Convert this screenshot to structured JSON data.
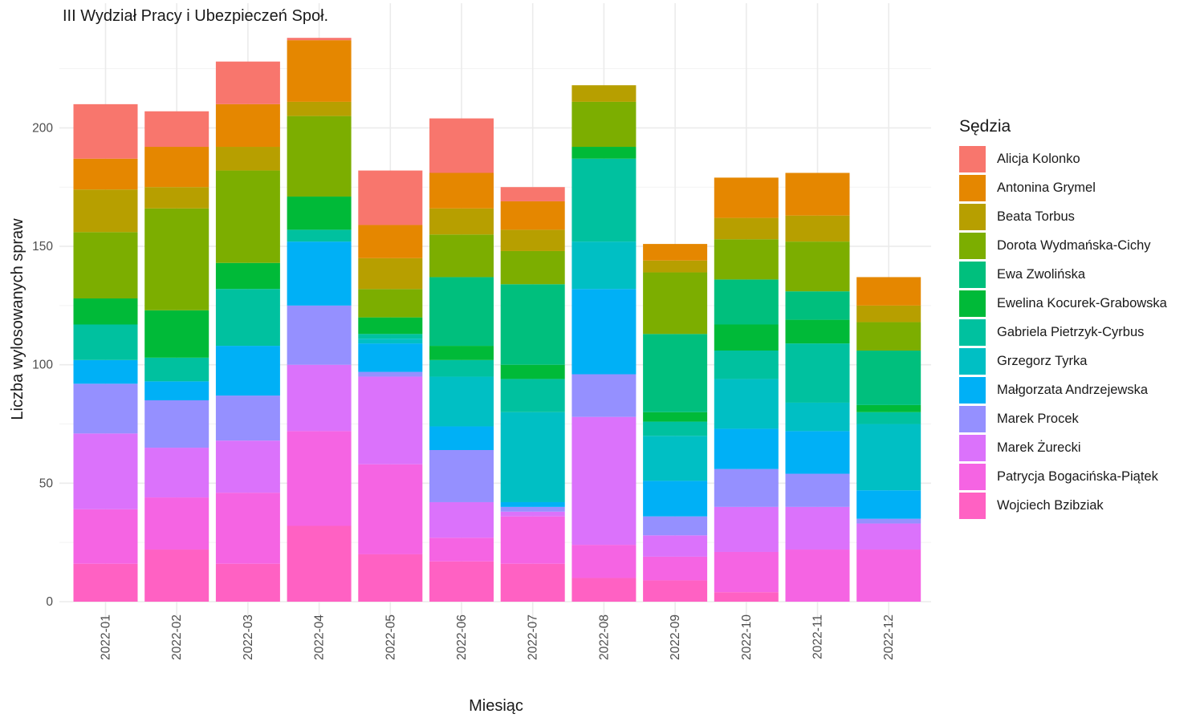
{
  "chart_data": {
    "type": "bar",
    "stacked": true,
    "title": "III Wydział Pracy i Ubezpieczeń Społ.",
    "xlabel": "Miesiąc",
    "ylabel": "Liczba wylosowanych spraw",
    "ylim": [
      0,
      240
    ],
    "yticks": [
      0,
      50,
      100,
      150,
      200
    ],
    "grid": true,
    "legend_title": "Sędzia",
    "legend_position": "right",
    "categories": [
      "2022-01",
      "2022-02",
      "2022-03",
      "2022-04",
      "2022-05",
      "2022-06",
      "2022-07",
      "2022-08",
      "2022-09",
      "2022-10",
      "2022-11",
      "2022-12"
    ],
    "series": [
      {
        "name": "Wojciech Bzibziak",
        "color": "#FF61C3",
        "values": [
          16,
          22,
          16,
          32,
          20,
          17,
          16,
          10,
          9,
          4,
          0,
          0
        ]
      },
      {
        "name": "Patrycja Bogacińska-Piątek",
        "color": "#F564E3",
        "values": [
          23,
          22,
          30,
          40,
          38,
          10,
          20,
          14,
          10,
          17,
          22,
          22
        ]
      },
      {
        "name": "Marek Żurecki",
        "color": "#DB72FB",
        "values": [
          32,
          21,
          22,
          28,
          37,
          15,
          2,
          54,
          9,
          19,
          18,
          11
        ]
      },
      {
        "name": "Marek Procek",
        "color": "#9590FF",
        "values": [
          21,
          20,
          19,
          25,
          2,
          22,
          2,
          18,
          8,
          16,
          14,
          2
        ]
      },
      {
        "name": "Małgorzata Andrzejewska",
        "color": "#00B0F6",
        "values": [
          10,
          8,
          21,
          27,
          12,
          10,
          2,
          36,
          15,
          17,
          18,
          12
        ]
      },
      {
        "name": "Grzegorz Tyrka",
        "color": "#00BFC4",
        "values": [
          0,
          0,
          0,
          0,
          2,
          21,
          38,
          20,
          19,
          21,
          12,
          28
        ]
      },
      {
        "name": "Gabriela Pietrzyk-Cyrbus",
        "color": "#00C19F",
        "values": [
          15,
          10,
          24,
          5,
          2,
          7,
          14,
          35,
          6,
          12,
          25,
          5
        ]
      },
      {
        "name": "Ewelina Kocurek-Grabowska",
        "color": "#00BA38",
        "values": [
          11,
          20,
          11,
          14,
          7,
          6,
          6,
          5,
          4,
          11,
          10,
          3
        ]
      },
      {
        "name": "Ewa Zwolińska",
        "color": "#00BF7D",
        "values": [
          0,
          0,
          0,
          0,
          0,
          29,
          34,
          0,
          33,
          19,
          12,
          23
        ]
      },
      {
        "name": "Dorota Wydmańska-Cichy",
        "color": "#7CAE00",
        "values": [
          28,
          43,
          39,
          34,
          12,
          18,
          14,
          19,
          26,
          17,
          21,
          12
        ]
      },
      {
        "name": "Beata Torbus",
        "color": "#B79F00",
        "values": [
          18,
          9,
          10,
          6,
          13,
          11,
          9,
          7,
          5,
          9,
          11,
          7
        ]
      },
      {
        "name": "Antonina Grymel",
        "color": "#E58700",
        "values": [
          13,
          17,
          18,
          26,
          14,
          15,
          12,
          0,
          7,
          17,
          18,
          12
        ]
      },
      {
        "name": "Alicja Kolonko",
        "color": "#F8766D",
        "values": [
          23,
          15,
          18,
          1,
          23,
          23,
          6,
          0,
          0,
          0,
          0,
          0
        ]
      }
    ],
    "legend_order": [
      "Alicja Kolonko",
      "Antonina Grymel",
      "Beata Torbus",
      "Dorota Wydmańska-Cichy",
      "Ewa Zwolińska",
      "Ewelina Kocurek-Grabowska",
      "Gabriela Pietrzyk-Cyrbus",
      "Grzegorz Tyrka",
      "Małgorzata Andrzejewska",
      "Marek Procek",
      "Marek Żurecki",
      "Patrycja Bogacińska-Piątek",
      "Wojciech Bzibziak"
    ]
  }
}
